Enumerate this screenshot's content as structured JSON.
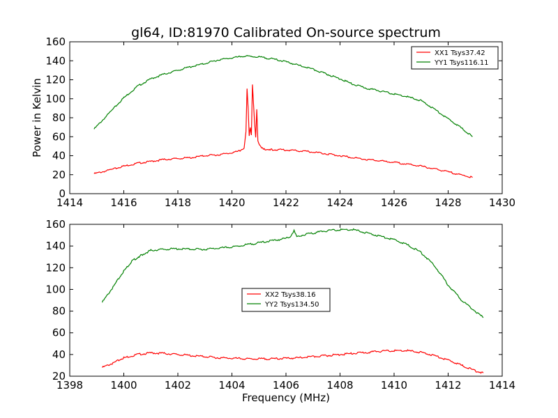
{
  "title": "gl64, ID:81970 Calibrated On-source spectrum",
  "colors": {
    "xx": "#ff0000",
    "yy": "#008000",
    "axes": "#000000"
  },
  "chart_data": [
    {
      "type": "line",
      "title": "gl64, ID:81970 Calibrated On-source spectrum",
      "xlabel": "",
      "ylabel": "Power in Kelvin",
      "xlim": [
        1414,
        1430
      ],
      "ylim": [
        0,
        160
      ],
      "xticks": [
        "1414",
        "1416",
        "1418",
        "1420",
        "1422",
        "1424",
        "1426",
        "1428",
        "1430"
      ],
      "yticks": [
        "0",
        "20",
        "40",
        "60",
        "80",
        "100",
        "120",
        "140",
        "160"
      ],
      "legend_position": "top-right",
      "grid": false,
      "series": [
        {
          "name": "XX1 Tsys37.42",
          "color": "#ff0000",
          "x": [
            1414.9,
            1415.5,
            1416.0,
            1416.5,
            1417.0,
            1417.5,
            1418.0,
            1418.5,
            1419.0,
            1419.5,
            1420.0,
            1420.3,
            1420.45,
            1420.52,
            1420.56,
            1420.6,
            1420.64,
            1420.68,
            1420.72,
            1420.76,
            1420.8,
            1420.84,
            1420.88,
            1420.92,
            1420.96,
            1421.0,
            1421.05,
            1421.1,
            1421.2,
            1421.5,
            1422.0,
            1423.0,
            1424.0,
            1425.0,
            1426.0,
            1427.0,
            1428.0,
            1428.9
          ],
          "y": [
            21,
            25,
            29,
            32,
            34,
            36,
            37,
            38,
            40,
            41,
            43,
            45,
            47,
            65,
            110,
            90,
            60,
            70,
            62,
            115,
            95,
            75,
            60,
            88,
            55,
            52,
            50,
            48,
            47,
            46.5,
            46,
            44,
            40,
            36,
            33,
            29,
            23,
            17
          ]
        },
        {
          "name": "YY1 Tsys116.11",
          "color": "#008000",
          "x": [
            1414.9,
            1415.5,
            1416.0,
            1416.5,
            1417.0,
            1417.5,
            1418.0,
            1418.5,
            1419.0,
            1419.5,
            1420.0,
            1420.5,
            1421.0,
            1421.5,
            1422.0,
            1422.5,
            1423.0,
            1423.5,
            1424.0,
            1424.5,
            1425.0,
            1425.5,
            1426.0,
            1426.5,
            1427.0,
            1427.5,
            1428.0,
            1428.5,
            1428.9
          ],
          "y": [
            68,
            86,
            101,
            113,
            121,
            126,
            130,
            134,
            137,
            141,
            143,
            145,
            144,
            142,
            139,
            135,
            131,
            126,
            121,
            115,
            111,
            108,
            105,
            102,
            98,
            89,
            79,
            69,
            60
          ]
        }
      ]
    },
    {
      "type": "line",
      "title": "",
      "xlabel": "Frequency (MHz)",
      "ylabel": "",
      "xlim": [
        1398,
        1414
      ],
      "ylim": [
        20,
        160
      ],
      "xticks": [
        "1398",
        "1400",
        "1402",
        "1404",
        "1406",
        "1408",
        "1410",
        "1412",
        "1414"
      ],
      "yticks": [
        "20",
        "40",
        "60",
        "80",
        "100",
        "120",
        "140",
        "160"
      ],
      "legend_position": "center",
      "grid": false,
      "series": [
        {
          "name": "XX2 Tsys38.16",
          "color": "#ff0000",
          "x": [
            1399.2,
            1399.6,
            1400.0,
            1400.5,
            1401.0,
            1401.5,
            1402.0,
            1402.5,
            1403.0,
            1403.5,
            1404.0,
            1404.5,
            1405.0,
            1405.5,
            1406.0,
            1406.5,
            1407.0,
            1407.5,
            1408.0,
            1408.5,
            1409.0,
            1409.5,
            1410.0,
            1410.5,
            1411.0,
            1411.5,
            1412.0,
            1412.5,
            1413.0,
            1413.3
          ],
          "y": [
            28,
            32,
            37,
            40,
            41.5,
            41,
            40,
            39,
            38,
            37,
            36.5,
            36,
            36,
            36,
            36.5,
            37,
            38,
            39,
            40,
            41,
            42,
            43,
            43.5,
            43.5,
            42,
            39,
            35,
            30,
            25,
            23
          ]
        },
        {
          "name": "YY2 Tsys134.50",
          "color": "#008000",
          "x": [
            1399.2,
            1399.6,
            1400.0,
            1400.3,
            1400.6,
            1401.0,
            1401.5,
            1402.0,
            1402.5,
            1403.0,
            1403.5,
            1404.0,
            1404.5,
            1405.0,
            1405.5,
            1406.0,
            1406.2,
            1406.3,
            1406.4,
            1406.6,
            1407.0,
            1407.5,
            1408.0,
            1408.5,
            1409.0,
            1409.5,
            1410.0,
            1410.5,
            1411.0,
            1411.5,
            1412.0,
            1412.5,
            1413.0,
            1413.3
          ],
          "y": [
            88,
            102,
            117,
            126,
            131,
            136,
            137,
            137.5,
            137,
            137,
            138,
            139,
            141,
            143,
            145,
            147,
            149,
            155,
            149,
            150,
            152,
            154,
            155,
            155,
            152,
            149,
            146,
            141,
            134,
            122,
            104,
            90,
            80,
            74
          ]
        }
      ]
    }
  ]
}
